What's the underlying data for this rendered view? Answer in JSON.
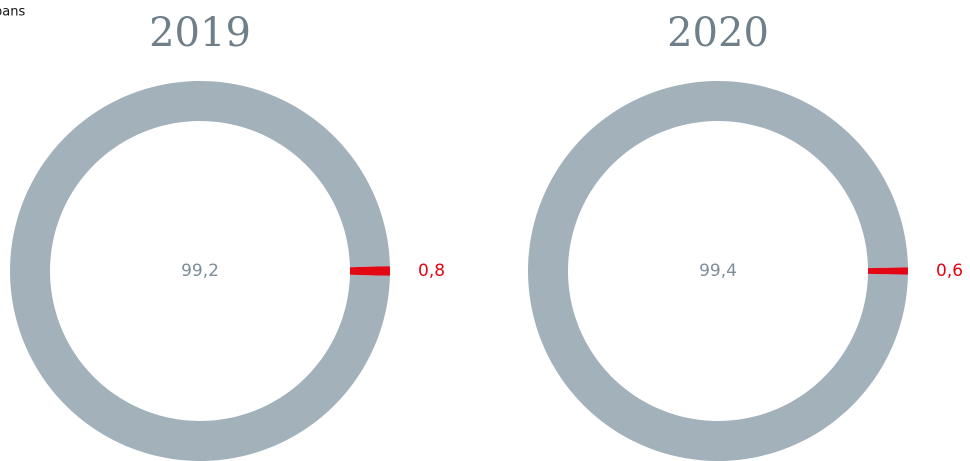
{
  "caption": "pans",
  "chart_data": [
    {
      "type": "donut",
      "title": "2019",
      "values": [
        99.2,
        0.8
      ],
      "value_labels": [
        "99,2",
        "0,8"
      ],
      "colors": [
        "#a2b1ba",
        "#e30613"
      ]
    },
    {
      "type": "donut",
      "title": "2020",
      "values": [
        99.4,
        0.6
      ],
      "value_labels": [
        "99,4",
        "0,6"
      ],
      "colors": [
        "#a2b1ba",
        "#e30613"
      ]
    }
  ]
}
